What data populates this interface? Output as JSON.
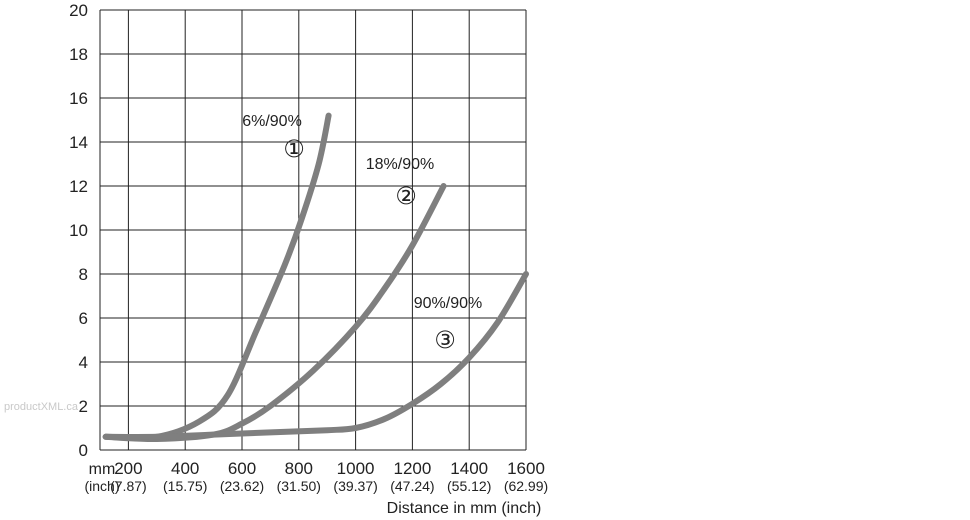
{
  "watermark": "productXML.ca",
  "chart_data": {
    "type": "line",
    "title": "",
    "xlabel": "Distance in mm (inch)",
    "ylabel": "",
    "xlim": [
      100,
      1600
    ],
    "ylim": [
      0,
      20
    ],
    "grid": true,
    "x_unit_label": "mm",
    "x_subunit_label": "(inch)",
    "yticks": [
      "0",
      "2",
      "4",
      "6",
      "8",
      "10",
      "12",
      "14",
      "16",
      "18",
      "20"
    ],
    "xticks": [
      "200",
      "400",
      "600",
      "800",
      "1000",
      "1200",
      "1400",
      "1600"
    ],
    "xticks_inch": [
      "(7.87)",
      "(15.75)",
      "(23.62)",
      "(31.50)",
      "(39.37)",
      "(47.24)",
      "(55.12)",
      "(62.99)"
    ],
    "line_color": "#7f7f7f",
    "series": [
      {
        "name": "6%/90%",
        "marker": "①",
        "x": [
          120,
          300,
          450,
          550,
          650,
          750,
          810,
          870,
          905
        ],
        "y": [
          0.6,
          0.6,
          1.3,
          2.5,
          5.4,
          8.4,
          10.5,
          13.0,
          15.2
        ]
      },
      {
        "name": "18%/90%",
        "marker": "②",
        "x": [
          120,
          300,
          500,
          600,
          700,
          850,
          1000,
          1100,
          1200,
          1310
        ],
        "y": [
          0.6,
          0.5,
          0.7,
          1.2,
          2.0,
          3.6,
          5.6,
          7.3,
          9.3,
          12.0
        ]
      },
      {
        "name": "90%/90%",
        "marker": "③",
        "x": [
          120,
          300,
          500,
          700,
          900,
          1000,
          1100,
          1200,
          1300,
          1400,
          1500,
          1600
        ],
        "y": [
          0.6,
          0.6,
          0.7,
          0.8,
          0.9,
          1.0,
          1.4,
          2.1,
          3.0,
          4.2,
          5.8,
          8.0
        ]
      }
    ]
  }
}
